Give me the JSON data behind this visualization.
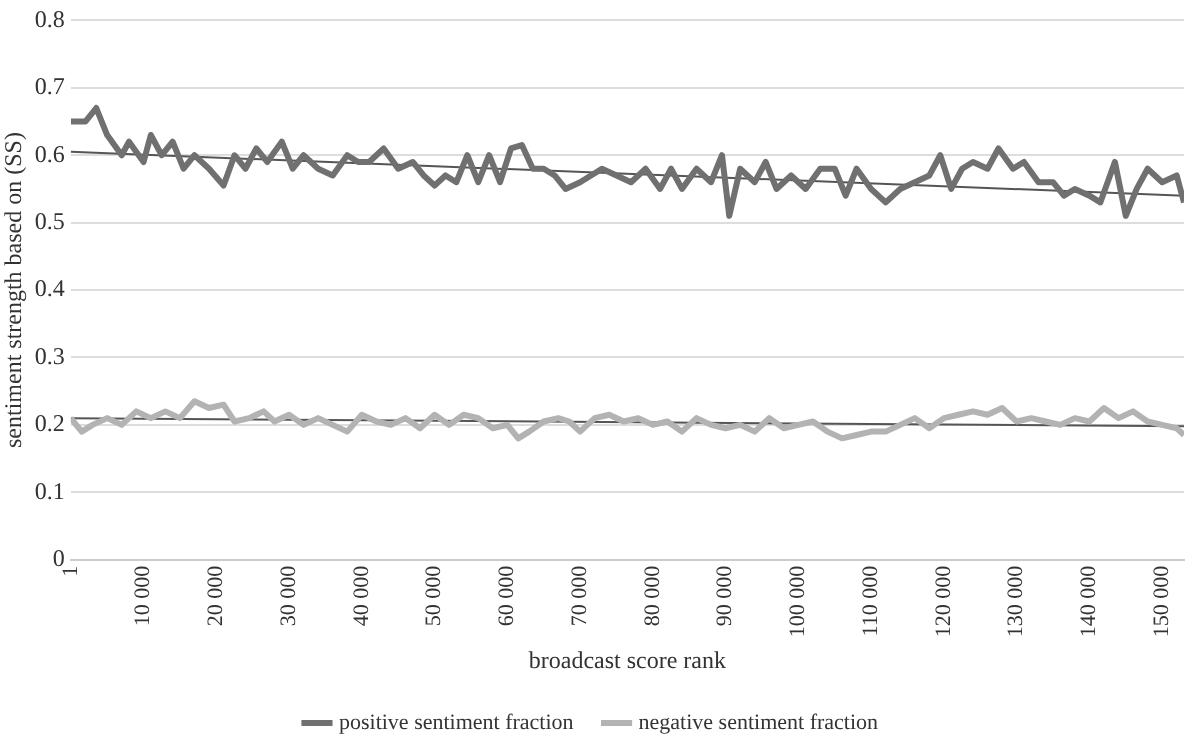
{
  "chart_data": {
    "type": "line",
    "xlabel": "broadcast score rank",
    "ylabel": "sentiment strength based on (SS)",
    "xlim": [
      1,
      153000
    ],
    "xticks": [
      1,
      {
        "value": 10000,
        "label": "10 000"
      },
      {
        "value": 20000,
        "label": "20 000"
      },
      {
        "value": 30000,
        "label": "30 000"
      },
      {
        "value": 40000,
        "label": "40 000"
      },
      {
        "value": 50000,
        "label": "50 000"
      },
      {
        "value": 60000,
        "label": "60 000"
      },
      {
        "value": 70000,
        "label": "70 000"
      },
      {
        "value": 80000,
        "label": "80 000"
      },
      {
        "value": 90000,
        "label": "90 000"
      },
      {
        "value": 100000,
        "label": "100 000"
      },
      {
        "value": 110000,
        "label": "110 000"
      },
      {
        "value": 120000,
        "label": "120 000"
      },
      {
        "value": 130000,
        "label": "130 000"
      },
      {
        "value": 140000,
        "label": "140 000"
      },
      {
        "value": 150000,
        "label": "150 000"
      }
    ],
    "ylim": [
      0,
      0.8
    ],
    "yticks": [
      0,
      0.1,
      0.2,
      0.3,
      0.4,
      0.5,
      0.6,
      0.7,
      0.8
    ],
    "grid": "y",
    "legend": "bottom",
    "marker": "none",
    "line_style": "solid",
    "series": [
      {
        "name": "positive sentiment fraction",
        "color": "#707070",
        "x": [
          1,
          2000,
          3500,
          5000,
          7000,
          8000,
          10000,
          11000,
          12500,
          14000,
          15500,
          17000,
          19000,
          21000,
          22500,
          24000,
          25500,
          27000,
          29000,
          30500,
          32000,
          34000,
          36000,
          38000,
          39500,
          41000,
          43000,
          45000,
          47000,
          48500,
          50000,
          51500,
          53000,
          54500,
          56000,
          57500,
          59000,
          60500,
          62000,
          63500,
          65000,
          66500,
          68000,
          70000,
          71500,
          73000,
          75000,
          77000,
          79000,
          81000,
          82500,
          84000,
          86000,
          88000,
          89500,
          90500,
          92000,
          94000,
          95500,
          97000,
          99000,
          101000,
          103000,
          105000,
          106500,
          108000,
          110000,
          112000,
          114000,
          116000,
          118000,
          119500,
          121000,
          122500,
          124000,
          126000,
          127500,
          129500,
          131000,
          133000,
          135000,
          136500,
          138000,
          140000,
          141500,
          143500,
          145000,
          146500,
          148000,
          150000,
          152000,
          153000
        ],
        "values": [
          0.65,
          0.65,
          0.67,
          0.63,
          0.6,
          0.62,
          0.59,
          0.63,
          0.6,
          0.62,
          0.58,
          0.6,
          0.58,
          0.555,
          0.6,
          0.58,
          0.61,
          0.59,
          0.62,
          0.58,
          0.6,
          0.58,
          0.57,
          0.6,
          0.59,
          0.59,
          0.61,
          0.58,
          0.59,
          0.57,
          0.555,
          0.57,
          0.56,
          0.6,
          0.56,
          0.6,
          0.56,
          0.61,
          0.615,
          0.58,
          0.58,
          0.57,
          0.55,
          0.56,
          0.57,
          0.58,
          0.57,
          0.56,
          0.58,
          0.55,
          0.58,
          0.55,
          0.58,
          0.56,
          0.6,
          0.51,
          0.58,
          0.56,
          0.59,
          0.55,
          0.57,
          0.55,
          0.58,
          0.58,
          0.54,
          0.58,
          0.55,
          0.53,
          0.55,
          0.56,
          0.57,
          0.6,
          0.55,
          0.58,
          0.59,
          0.58,
          0.61,
          0.58,
          0.59,
          0.56,
          0.56,
          0.54,
          0.55,
          0.54,
          0.53,
          0.59,
          0.51,
          0.55,
          0.58,
          0.56,
          0.57,
          0.53
        ]
      },
      {
        "name": "negative sentiment fraction",
        "color": "#b3b3b3",
        "x": [
          1,
          1500,
          3000,
          5000,
          7000,
          9000,
          11000,
          13000,
          15000,
          17000,
          19000,
          21000,
          22500,
          24500,
          26500,
          28000,
          30000,
          32000,
          34000,
          36000,
          38000,
          40000,
          42000,
          44000,
          46000,
          48000,
          50000,
          52000,
          54000,
          56000,
          58000,
          60000,
          61500,
          63000,
          65000,
          67000,
          68500,
          70000,
          72000,
          74000,
          76000,
          78000,
          80000,
          82000,
          84000,
          86000,
          88000,
          90000,
          92000,
          94000,
          96000,
          98000,
          100000,
          102000,
          104000,
          106000,
          108000,
          110000,
          112000,
          114000,
          116000,
          118000,
          120000,
          122000,
          124000,
          126000,
          128000,
          130000,
          132000,
          134000,
          136000,
          138000,
          140000,
          142000,
          144000,
          146000,
          148000,
          150000,
          152000,
          153000
        ],
        "values": [
          0.21,
          0.19,
          0.2,
          0.21,
          0.2,
          0.22,
          0.21,
          0.22,
          0.21,
          0.235,
          0.225,
          0.23,
          0.205,
          0.21,
          0.22,
          0.205,
          0.215,
          0.2,
          0.21,
          0.2,
          0.19,
          0.215,
          0.205,
          0.2,
          0.21,
          0.195,
          0.215,
          0.2,
          0.215,
          0.21,
          0.195,
          0.2,
          0.18,
          0.19,
          0.205,
          0.21,
          0.205,
          0.19,
          0.21,
          0.215,
          0.205,
          0.21,
          0.2,
          0.205,
          0.19,
          0.21,
          0.2,
          0.195,
          0.2,
          0.19,
          0.21,
          0.195,
          0.2,
          0.205,
          0.19,
          0.18,
          0.185,
          0.19,
          0.19,
          0.2,
          0.21,
          0.195,
          0.21,
          0.215,
          0.22,
          0.215,
          0.225,
          0.205,
          0.21,
          0.205,
          0.2,
          0.21,
          0.205,
          0.225,
          0.21,
          0.22,
          0.205,
          0.2,
          0.195,
          0.185
        ]
      },
      {
        "type": "line",
        "color": "#555555",
        "x": [
          1,
          153000
        ],
        "values": [
          0.605,
          0.54
        ]
      },
      {
        "type": "line",
        "color": "#555555",
        "x": [
          1,
          153000
        ],
        "values": [
          0.21,
          0.198
        ]
      }
    ]
  }
}
